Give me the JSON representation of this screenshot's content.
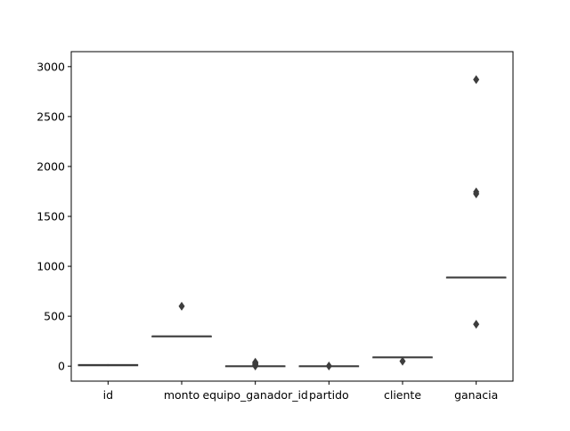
{
  "chart_data": {
    "type": "box",
    "title": "",
    "xlabel": "",
    "ylabel": "",
    "categories": [
      "id",
      "monto",
      "equipo_ganador_id",
      "partido",
      "cliente",
      "ganacia"
    ],
    "ylim": [
      -150,
      3150
    ],
    "yticks": [
      0,
      500,
      1000,
      1500,
      2000,
      2500,
      3000
    ],
    "grid": false,
    "legend": "none",
    "box_color": "#3d3d3d",
    "outlier_color": "#3d3d3d",
    "boxes": [
      {
        "name": "id",
        "q1": 6,
        "median": 10,
        "q3": 14,
        "whisker_low": 1,
        "whisker_high": 20,
        "outliers": []
      },
      {
        "name": "monto",
        "q1": 300,
        "median": 300,
        "q3": 300,
        "whisker_low": 300,
        "whisker_high": 300,
        "outliers": [
          600
        ]
      },
      {
        "name": "equipo_ganador_id",
        "q1": 1,
        "median": 1,
        "q3": 1,
        "whisker_low": 1,
        "whisker_high": 1,
        "outliers": [
          2,
          10,
          20,
          30,
          40
        ]
      },
      {
        "name": "partido",
        "q1": 1,
        "median": 1,
        "q3": 1,
        "whisker_low": 1,
        "whisker_high": 1,
        "outliers": [
          2
        ]
      },
      {
        "name": "cliente",
        "q1": 90,
        "median": 90,
        "q3": 90,
        "whisker_low": 90,
        "whisker_high": 90,
        "outliers": [
          50
        ]
      },
      {
        "name": "ganacia",
        "q1": 890,
        "median": 890,
        "q3": 890,
        "whisker_low": 890,
        "whisker_high": 890,
        "outliers": [
          420,
          1725,
          1745,
          2870
        ]
      }
    ]
  }
}
